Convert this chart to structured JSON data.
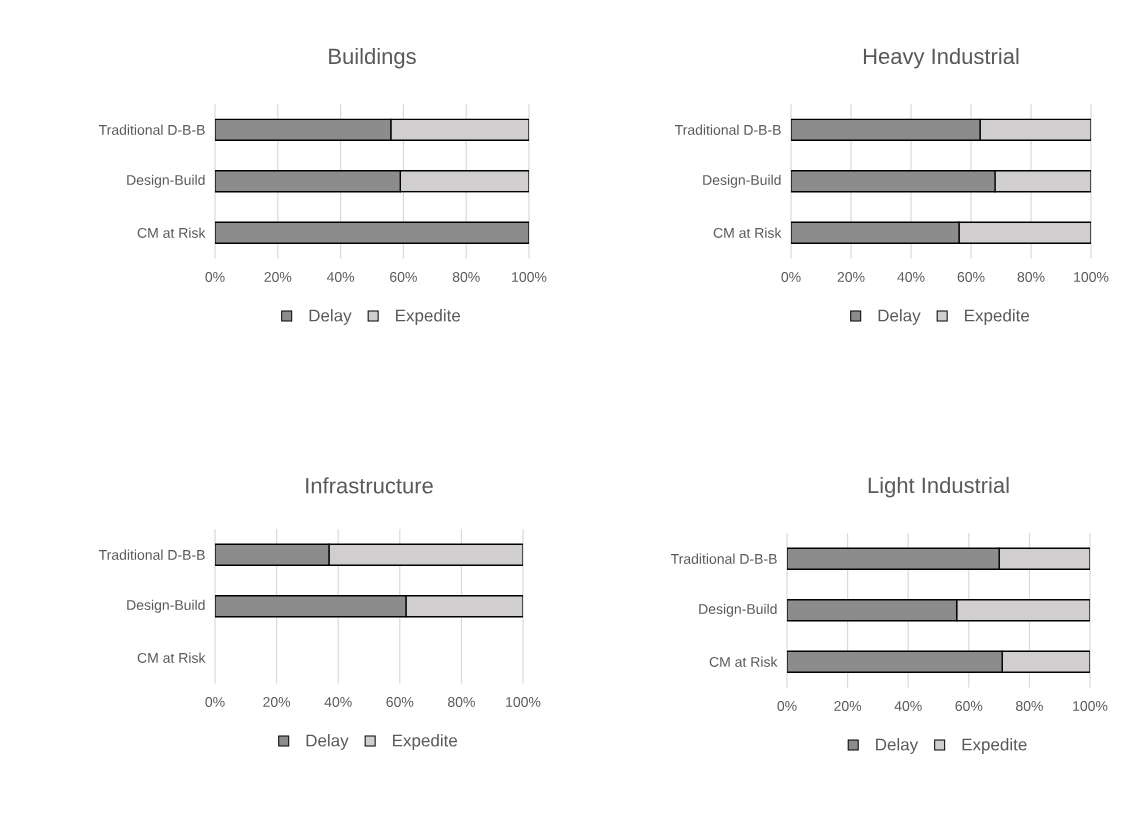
{
  "chart_data": [
    {
      "type": "bar",
      "orientation": "horizontal",
      "stacked": true,
      "title": "Buildings",
      "categories": [
        "Traditional D-B-B",
        "Design-Build",
        "CM at Risk"
      ],
      "series": [
        {
          "name": "Delay",
          "color": "#8c8c8c",
          "values": [
            56,
            59,
            100
          ]
        },
        {
          "name": "Expedite",
          "color": "#d0cece",
          "values": [
            44,
            41,
            0
          ]
        }
      ],
      "xlim": [
        0,
        100
      ],
      "xticks": [
        {
          "value": 0,
          "label": "0%"
        },
        {
          "value": 20,
          "label": "20%"
        },
        {
          "value": 40,
          "label": "40%"
        },
        {
          "value": 60,
          "label": "60%"
        },
        {
          "value": 80,
          "label": "80%"
        },
        {
          "value": 100,
          "label": "100%"
        }
      ],
      "grid": "x",
      "legend": "bottom"
    },
    {
      "type": "bar",
      "orientation": "horizontal",
      "stacked": true,
      "title": "Heavy Industrial",
      "categories": [
        "Traditional D-B-B",
        "Design-Build",
        "CM at Risk"
      ],
      "series": [
        {
          "name": "Delay",
          "color": "#8c8c8c",
          "values": [
            63,
            68,
            56
          ]
        },
        {
          "name": "Expedite",
          "color": "#d0cece",
          "values": [
            37,
            32,
            44
          ]
        }
      ],
      "xlim": [
        0,
        100
      ],
      "xticks": [
        {
          "value": 0,
          "label": "0%"
        },
        {
          "value": 20,
          "label": "20%"
        },
        {
          "value": 40,
          "label": "40%"
        },
        {
          "value": 60,
          "label": "60%"
        },
        {
          "value": 80,
          "label": "80%"
        },
        {
          "value": 100,
          "label": "100%"
        }
      ],
      "grid": "x",
      "legend": "bottom"
    },
    {
      "type": "bar",
      "orientation": "horizontal",
      "stacked": true,
      "title": "Infrastructure",
      "categories": [
        "Traditional D-B-B",
        "Design-Build",
        "CM at Risk"
      ],
      "series": [
        {
          "name": "Delay",
          "color": "#8c8c8c",
          "values": [
            37,
            62,
            null
          ]
        },
        {
          "name": "Expedite",
          "color": "#d0cece",
          "values": [
            63,
            38,
            null
          ]
        }
      ],
      "xlim": [
        0,
        100
      ],
      "xticks": [
        {
          "value": 0,
          "label": "0%"
        },
        {
          "value": 20,
          "label": "20%"
        },
        {
          "value": 40,
          "label": "40%"
        },
        {
          "value": 60,
          "label": "60%"
        },
        {
          "value": 80,
          "label": "80%"
        },
        {
          "value": 100,
          "label": "100%"
        }
      ],
      "grid": "x",
      "legend": "bottom"
    },
    {
      "type": "bar",
      "orientation": "horizontal",
      "stacked": true,
      "title": "Light Industrial",
      "categories": [
        "Traditional D-B-B",
        "Design-Build",
        "CM at Risk"
      ],
      "series": [
        {
          "name": "Delay",
          "color": "#8c8c8c",
          "values": [
            70,
            56,
            71
          ]
        },
        {
          "name": "Expedite",
          "color": "#d0cece",
          "values": [
            30,
            44,
            29
          ]
        }
      ],
      "xlim": [
        0,
        100
      ],
      "xticks": [
        {
          "value": 0,
          "label": "0%"
        },
        {
          "value": 20,
          "label": "20%"
        },
        {
          "value": 40,
          "label": "40%"
        },
        {
          "value": 60,
          "label": "60%"
        },
        {
          "value": 80,
          "label": "80%"
        },
        {
          "value": 100,
          "label": "100%"
        }
      ],
      "grid": "x",
      "legend": "bottom"
    }
  ]
}
